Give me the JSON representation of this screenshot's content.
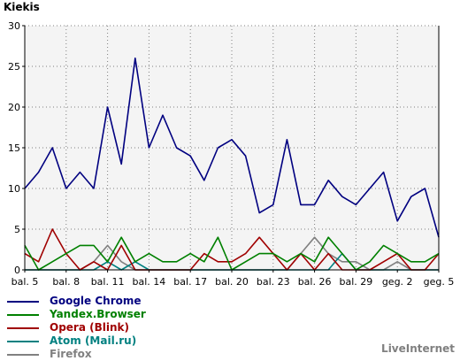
{
  "chart_data": {
    "type": "line",
    "title": "Kiekis",
    "ylim": [
      0,
      30
    ],
    "yticks": [
      0,
      5,
      10,
      15,
      20,
      25,
      30
    ],
    "x_labels": [
      "bal. 5",
      "bal. 8",
      "bal. 11",
      "bal. 14",
      "bal. 17",
      "bal. 20",
      "bal. 23",
      "bal. 26",
      "bal. 29",
      "geg. 2",
      "geg. 5"
    ],
    "x_label_days": [
      0,
      3,
      6,
      9,
      12,
      15,
      18,
      21,
      24,
      27,
      30
    ],
    "x_days": [
      0,
      1,
      2,
      3,
      4,
      5,
      6,
      7,
      8,
      9,
      10,
      11,
      12,
      13,
      14,
      15,
      16,
      17,
      18,
      19,
      20,
      21,
      22,
      23,
      24,
      25,
      26,
      27,
      28,
      29,
      30
    ],
    "grid": true,
    "background": "#f4f4f4",
    "series": [
      {
        "name": "Google Chrome",
        "color": "#000080",
        "values": [
          10,
          12,
          15,
          10,
          12,
          10,
          20,
          13,
          26,
          15,
          19,
          15,
          14,
          11,
          15,
          16,
          14,
          7,
          8,
          16,
          8,
          8,
          11,
          9,
          8,
          10,
          12,
          6,
          9,
          10,
          4
        ]
      },
      {
        "name": "Yandex.Browser",
        "color": "#008000",
        "values": [
          3,
          0,
          1,
          2,
          3,
          3,
          1,
          4,
          1,
          2,
          1,
          1,
          2,
          1,
          4,
          0,
          1,
          2,
          2,
          1,
          2,
          1,
          4,
          2,
          0,
          1,
          3,
          2,
          1,
          1,
          2
        ]
      },
      {
        "name": "Opera (Blink)",
        "color": "#a00000",
        "values": [
          2,
          1,
          5,
          2,
          0,
          1,
          0,
          3,
          0,
          0,
          0,
          0,
          0,
          2,
          1,
          1,
          2,
          4,
          2,
          0,
          2,
          0,
          2,
          0,
          0,
          0,
          1,
          2,
          0,
          0,
          2
        ]
      },
      {
        "name": "Atom (Mail.ru)",
        "color": "#008080",
        "values": [
          0,
          0,
          0,
          0,
          0,
          0,
          1,
          0,
          1,
          0,
          0,
          0,
          0,
          0,
          0,
          0,
          0,
          0,
          0,
          0,
          0,
          0,
          0,
          2,
          0,
          0,
          0,
          0,
          0,
          0,
          0
        ]
      },
      {
        "name": "Firefox",
        "color": "#808080",
        "values": [
          0,
          0,
          0,
          0,
          0,
          1,
          3,
          1,
          0,
          0,
          0,
          0,
          0,
          0,
          0,
          0,
          0,
          0,
          0,
          0,
          2,
          4,
          2,
          1,
          1,
          0,
          0,
          1,
          0,
          0,
          0
        ]
      }
    ]
  },
  "credit": "LiveInternet"
}
